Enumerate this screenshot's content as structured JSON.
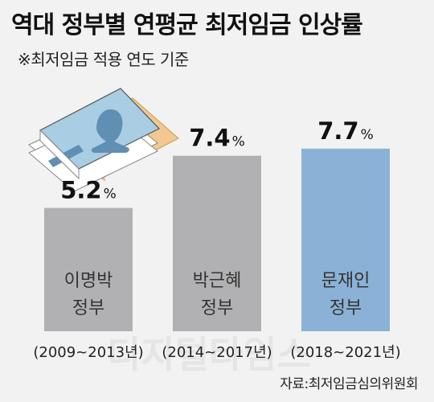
{
  "title": "역대 정부별 연평균 최저임금 인상률",
  "subtitle": "※최저임금 적용 연도 기준",
  "source": "자료:최저임금심의위원회",
  "watermark": "디지털타임스",
  "chart_data": {
    "type": "bar",
    "categories": [
      {
        "name_line1": "이명박",
        "name_line2": "정부",
        "period": "(2009~2013년)"
      },
      {
        "name_line1": "박근혜",
        "name_line2": "정부",
        "period": "(2014~2017년)"
      },
      {
        "name_line1": "문재인",
        "name_line2": "정부",
        "period": "(2018~2021년)"
      }
    ],
    "values": [
      5.2,
      7.4,
      7.7
    ],
    "value_labels": [
      "5.2",
      "7.4",
      "7.7"
    ],
    "unit": "%",
    "colors": [
      "#b1b1b3",
      "#b1b1b3",
      "#8bb2d6"
    ],
    "ylim": [
      0,
      10
    ],
    "grid": false
  },
  "icon": "stacked-banknotes-icon",
  "icon_colors": {
    "front": "#a9cde3",
    "accent": "#5f8fb3",
    "back": "#f0c890",
    "paper": "#ffffff"
  }
}
